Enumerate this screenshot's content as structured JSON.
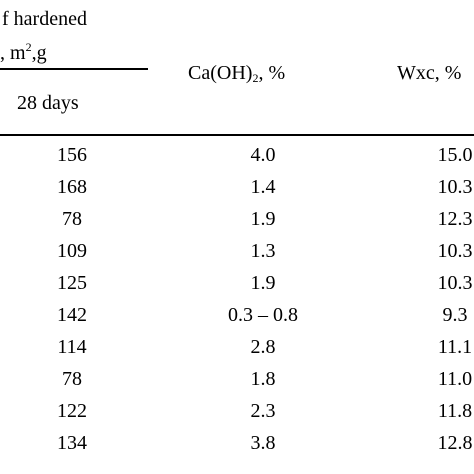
{
  "header": {
    "group_line1": "f hardened",
    "group_line2_prefix": ", m",
    "group_line2_sup": "2",
    "group_line2_suffix": ",g",
    "sub_col_28": "28 days",
    "col_caoh_prefix": "Ca(OH)",
    "col_caoh_sub": "2",
    "col_caoh_suffix": ", %",
    "col_wxc": "Wxc, %"
  },
  "rows": [
    {
      "c28": "156",
      "caoh": "4.0",
      "wxc": "15.0"
    },
    {
      "c28": "168",
      "caoh": "1.4",
      "wxc": "10.3"
    },
    {
      "c28": "78",
      "caoh": "1.9",
      "wxc": "12.3"
    },
    {
      "c28": "109",
      "caoh": "1.3",
      "wxc": "10.3"
    },
    {
      "c28": "125",
      "caoh": "1.9",
      "wxc": "10.3"
    },
    {
      "c28": "142",
      "caoh": "0.3 – 0.8",
      "wxc": "9.3"
    },
    {
      "c28": "114",
      "caoh": "2.8",
      "wxc": "11.1"
    },
    {
      "c28": "78",
      "caoh": "1.8",
      "wxc": "11.0"
    },
    {
      "c28": "122",
      "caoh": "2.3",
      "wxc": "11.8"
    },
    {
      "c28": "134",
      "caoh": "3.8",
      "wxc": "12.8"
    }
  ]
}
